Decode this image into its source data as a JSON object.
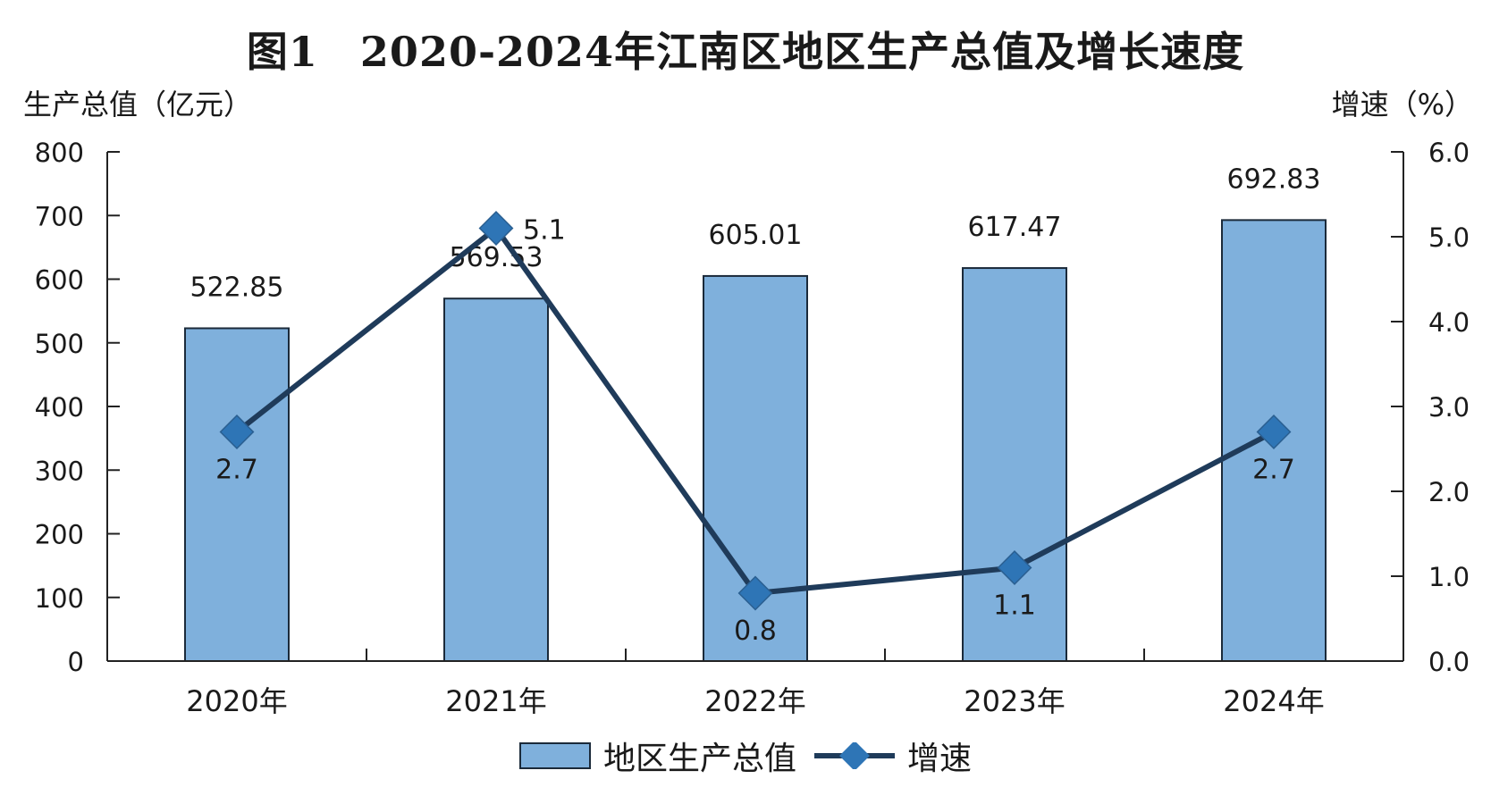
{
  "chart_data": {
    "type": "bar",
    "title": "图1　2020-2024年江南区地区生产总值及增长速度",
    "categories": [
      "2020年",
      "2021年",
      "2022年",
      "2023年",
      "2024年"
    ],
    "series": [
      {
        "name": "地区生产总值",
        "type": "bar",
        "axis": "left",
        "values": [
          522.85,
          569.53,
          605.01,
          617.47,
          692.83
        ],
        "color": "#7fb0dc"
      },
      {
        "name": "增速",
        "type": "line",
        "axis": "right",
        "values": [
          2.7,
          5.1,
          0.8,
          1.1,
          2.7
        ],
        "color": "#1f3b5a",
        "marker": "diamond",
        "marker_color": "#2e75b6"
      }
    ],
    "y_left": {
      "label": "生产总值（亿元）",
      "range": [
        0,
        800
      ],
      "ticks": [
        "0",
        "100",
        "200",
        "300",
        "400",
        "500",
        "600",
        "700",
        "800"
      ]
    },
    "y_right": {
      "label": "增速（%）",
      "range": [
        0,
        6
      ],
      "ticks": [
        "0.0",
        "1.0",
        "2.0",
        "3.0",
        "4.0",
        "5.0",
        "6.0"
      ]
    },
    "bar_labels": [
      "522.85",
      "569.53",
      "605.01",
      "617.47",
      "692.83"
    ],
    "line_labels": [
      "2.7",
      "5.1",
      "0.8",
      "1.1",
      "2.7"
    ],
    "grid": false,
    "legend_position": "bottom"
  },
  "legend": {
    "bar_label": "地区生产总值",
    "line_label": "增速"
  }
}
